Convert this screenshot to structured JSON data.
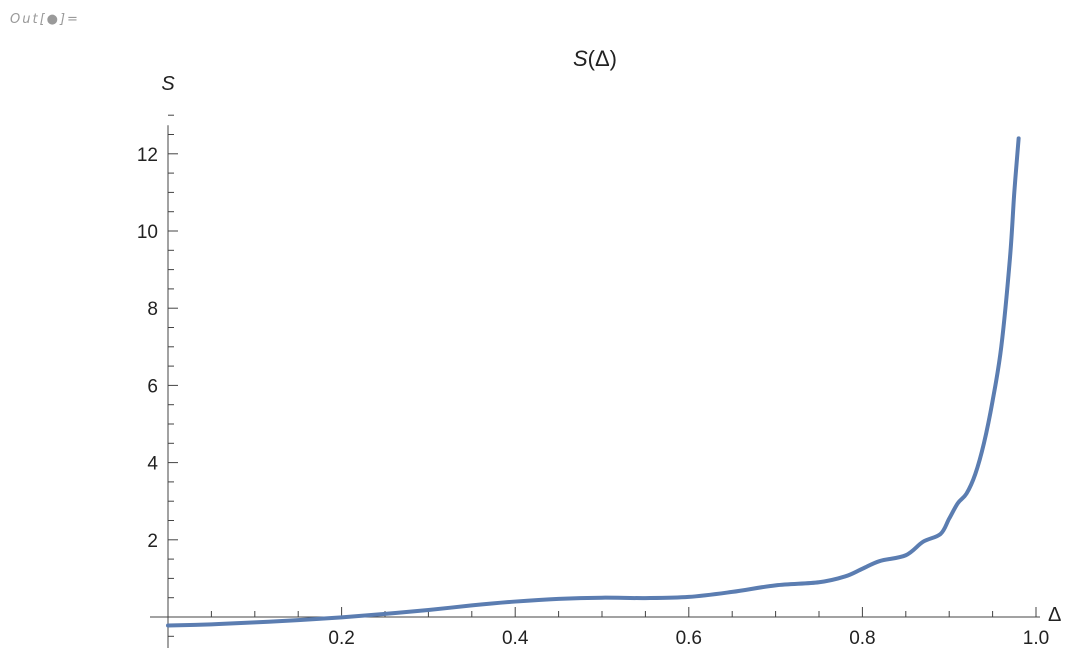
{
  "cell": {
    "out_label": "Out[●]="
  },
  "chart_data": {
    "type": "line",
    "title": "S(Δ)",
    "title_italic_part": "S",
    "title_rest": "(Δ)",
    "xlabel": "Δ",
    "ylabel": "S",
    "xlim": [
      0.0,
      1.0
    ],
    "ylim": [
      -0.75,
      13.0
    ],
    "x_ticks": [
      "0.2",
      "0.4",
      "0.6",
      "0.8",
      "1.0"
    ],
    "y_ticks": [
      "2",
      "4",
      "6",
      "8",
      "10",
      "12"
    ],
    "grid": false,
    "line_color": "#5b7db1",
    "series": [
      {
        "x": [
          0.0,
          0.05,
          0.1,
          0.15,
          0.2,
          0.25,
          0.3,
          0.35,
          0.4,
          0.45,
          0.5,
          0.55,
          0.6,
          0.65,
          0.7,
          0.75,
          0.78,
          0.8,
          0.82,
          0.85,
          0.87,
          0.89,
          0.9,
          0.91,
          0.92,
          0.93,
          0.94,
          0.95,
          0.96,
          0.97,
          0.975,
          0.98
        ],
        "y": [
          -0.22,
          -0.19,
          -0.14,
          -0.08,
          -0.01,
          0.08,
          0.18,
          0.3,
          0.4,
          0.47,
          0.5,
          0.49,
          0.52,
          0.65,
          0.82,
          0.9,
          1.05,
          1.25,
          1.45,
          1.6,
          1.95,
          2.15,
          2.55,
          2.95,
          3.2,
          3.7,
          4.5,
          5.6,
          7.0,
          9.3,
          11.0,
          12.4
        ]
      }
    ]
  }
}
